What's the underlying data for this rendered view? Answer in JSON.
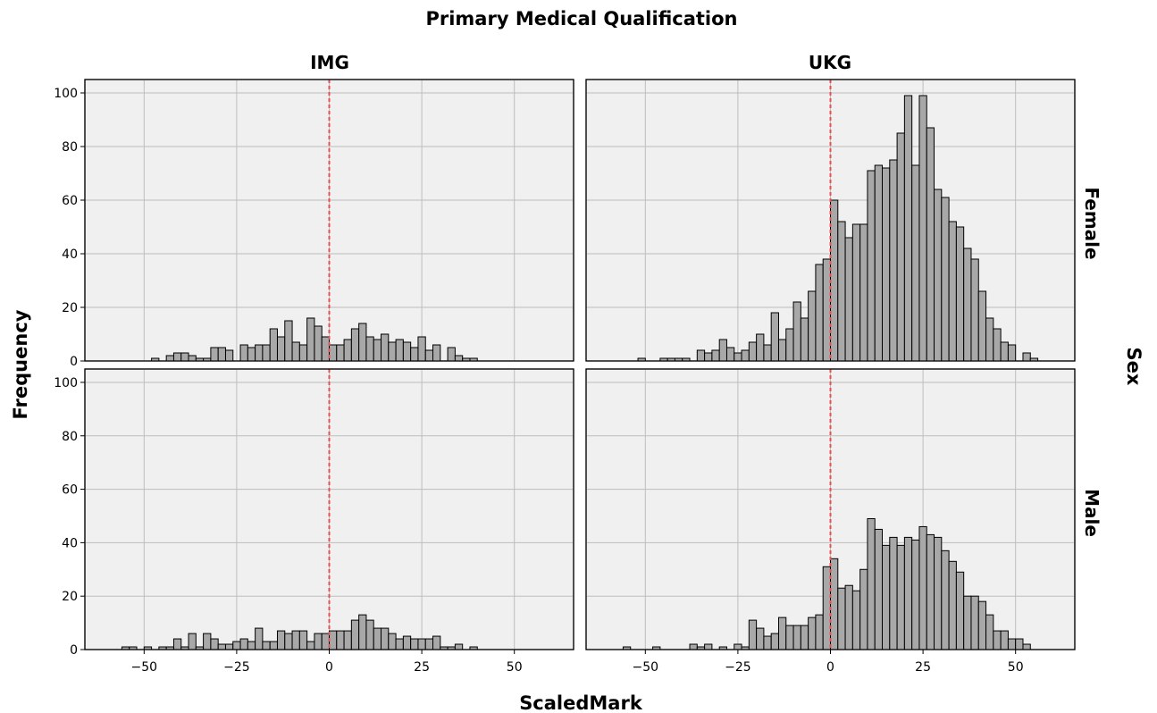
{
  "chart_data": {
    "type": "bar",
    "title": "Primary Medical Qualification",
    "xlabel": "ScaledMark",
    "ylabel": "Frequency",
    "row_facet_label": "Sex",
    "col_facets": [
      "IMG",
      "UKG"
    ],
    "row_facets": [
      "Female",
      "Male"
    ],
    "xlim": [
      -66,
      66
    ],
    "ylim": [
      0,
      105
    ],
    "xticks": [
      -50,
      -25,
      0,
      25,
      50
    ],
    "xtick_labels": [
      "−50",
      "−25",
      "0",
      "25",
      "50"
    ],
    "yticks": [
      0,
      20,
      40,
      60,
      80,
      100
    ],
    "ytick_labels": [
      "0",
      "20",
      "40",
      "60",
      "80",
      "100"
    ],
    "bin_width": 2,
    "reference_line_x": 0,
    "grid": true,
    "bar_color": "#a8a8a8",
    "reference_line_color": "#e8504f",
    "panel_background": "#f0f0f0",
    "panels": [
      {
        "col": "IMG",
        "row": "Female",
        "bin_starts": [
          -48,
          -46,
          -44,
          -42,
          -40,
          -38,
          -36,
          -34,
          -32,
          -30,
          -28,
          -26,
          -24,
          -22,
          -20,
          -18,
          -16,
          -14,
          -12,
          -10,
          -8,
          -6,
          -4,
          -2,
          0,
          2,
          4,
          6,
          8,
          10,
          12,
          14,
          16,
          18,
          20,
          22,
          24,
          26,
          28,
          30,
          32,
          34,
          36,
          38,
          40,
          42
        ],
        "values": [
          1,
          0,
          2,
          3,
          3,
          2,
          1,
          1,
          5,
          5,
          4,
          0,
          6,
          5,
          6,
          6,
          12,
          9,
          15,
          7,
          6,
          16,
          13,
          9,
          6,
          6,
          8,
          12,
          14,
          9,
          8,
          10,
          7,
          8,
          7,
          5,
          9,
          4,
          6,
          0,
          5,
          2,
          1,
          1,
          0,
          0
        ]
      },
      {
        "col": "UKG",
        "row": "Female",
        "bin_starts": [
          -52,
          -50,
          -48,
          -46,
          -44,
          -42,
          -40,
          -38,
          -36,
          -34,
          -32,
          -30,
          -28,
          -26,
          -24,
          -22,
          -20,
          -18,
          -16,
          -14,
          -12,
          -10,
          -8,
          -6,
          -4,
          -2,
          0,
          2,
          4,
          6,
          8,
          10,
          12,
          14,
          16,
          18,
          20,
          22,
          24,
          26,
          28,
          30,
          32,
          34,
          36,
          38,
          40,
          42,
          44,
          46,
          48,
          50,
          52,
          54,
          56
        ],
        "values": [
          1,
          0,
          0,
          1,
          1,
          1,
          1,
          0,
          4,
          3,
          4,
          8,
          5,
          3,
          4,
          7,
          10,
          6,
          18,
          8,
          12,
          22,
          16,
          26,
          36,
          38,
          60,
          52,
          46,
          51,
          51,
          71,
          73,
          72,
          75,
          85,
          99,
          73,
          99,
          87,
          64,
          61,
          52,
          50,
          42,
          38,
          26,
          16,
          12,
          7,
          6,
          0,
          3,
          1,
          0
        ]
      },
      {
        "col": "IMG",
        "row": "Male",
        "bin_starts": [
          -56,
          -54,
          -52,
          -50,
          -48,
          -46,
          -44,
          -42,
          -40,
          -38,
          -36,
          -34,
          -32,
          -30,
          -28,
          -26,
          -24,
          -22,
          -20,
          -18,
          -16,
          -14,
          -12,
          -10,
          -8,
          -6,
          -4,
          -2,
          0,
          2,
          4,
          6,
          8,
          10,
          12,
          14,
          16,
          18,
          20,
          22,
          24,
          26,
          28,
          30,
          32,
          34,
          36,
          38,
          40
        ],
        "values": [
          1,
          1,
          0,
          1,
          0,
          1,
          1,
          4,
          1,
          6,
          1,
          6,
          4,
          2,
          2,
          3,
          4,
          3,
          8,
          3,
          3,
          7,
          6,
          7,
          7,
          3,
          6,
          6,
          7,
          7,
          7,
          11,
          13,
          11,
          8,
          8,
          6,
          4,
          5,
          4,
          4,
          4,
          5,
          1,
          1,
          2,
          0,
          1,
          0
        ]
      },
      {
        "col": "UKG",
        "row": "Male",
        "bin_starts": [
          -56,
          -54,
          -52,
          -50,
          -48,
          -46,
          -44,
          -42,
          -40,
          -38,
          -36,
          -34,
          -32,
          -30,
          -28,
          -26,
          -24,
          -22,
          -20,
          -18,
          -16,
          -14,
          -12,
          -10,
          -8,
          -6,
          -4,
          -2,
          0,
          2,
          4,
          6,
          8,
          10,
          12,
          14,
          16,
          18,
          20,
          22,
          24,
          26,
          28,
          30,
          32,
          34,
          36,
          38,
          40,
          42,
          44,
          46,
          48,
          50,
          52
        ],
        "values": [
          1,
          0,
          0,
          0,
          1,
          0,
          0,
          0,
          0,
          2,
          1,
          2,
          0,
          1,
          0,
          2,
          1,
          11,
          8,
          5,
          6,
          12,
          9,
          9,
          9,
          12,
          13,
          31,
          34,
          23,
          24,
          22,
          30,
          49,
          45,
          39,
          42,
          39,
          42,
          41,
          46,
          43,
          42,
          37,
          33,
          29,
          20,
          20,
          18,
          13,
          7,
          7,
          4,
          4,
          2
        ]
      }
    ]
  }
}
